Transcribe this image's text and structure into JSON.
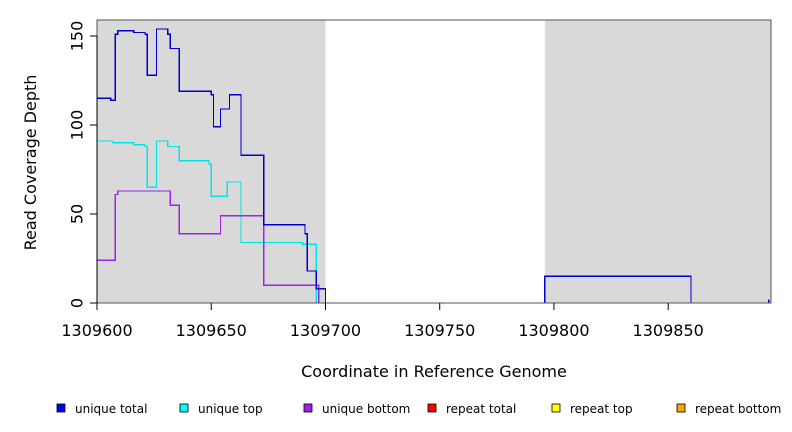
{
  "chart_data": {
    "type": "line",
    "step": true,
    "xlabel": "Coordinate in Reference Genome",
    "ylabel": "Read Coverage Depth",
    "xlim": [
      1309600,
      1309895
    ],
    "ylim": [
      0,
      159
    ],
    "x_ticks": [
      1309600,
      1309650,
      1309700,
      1309750,
      1309800,
      1309850
    ],
    "y_ticks": [
      0,
      50,
      100,
      150
    ],
    "grid": false,
    "shaded_regions": [
      [
        1309600,
        1309700
      ],
      [
        1309796,
        1309895
      ]
    ],
    "shade_color": "#d9d9d9",
    "legend_position": "bottom",
    "series": [
      {
        "name": "unique top",
        "color": "#00e5e5",
        "points": [
          [
            1309600,
            91
          ],
          [
            1309607,
            90
          ],
          [
            1309616,
            89
          ],
          [
            1309621,
            88
          ],
          [
            1309622,
            65
          ],
          [
            1309626,
            91
          ],
          [
            1309631,
            88
          ],
          [
            1309636,
            80
          ],
          [
            1309649,
            78
          ],
          [
            1309650,
            60
          ],
          [
            1309657,
            68
          ],
          [
            1309663,
            34
          ],
          [
            1309690,
            33
          ],
          [
            1309696,
            0
          ],
          [
            1309895,
            0
          ]
        ]
      },
      {
        "name": "unique bottom",
        "color": "#a020f0",
        "points": [
          [
            1309600,
            24
          ],
          [
            1309608,
            61
          ],
          [
            1309609,
            63
          ],
          [
            1309632,
            55
          ],
          [
            1309636,
            39
          ],
          [
            1309654,
            49
          ],
          [
            1309673,
            10
          ],
          [
            1309697,
            0
          ],
          [
            1309895,
            0
          ]
        ]
      },
      {
        "name": "repeat total",
        "color": "#ff0000",
        "points": [
          [
            1309600,
            0
          ],
          [
            1309895,
            0
          ]
        ]
      },
      {
        "name": "repeat top",
        "color": "#ffff00",
        "points": [
          [
            1309600,
            0
          ],
          [
            1309895,
            0
          ]
        ]
      },
      {
        "name": "repeat bottom",
        "color": "#ffa500",
        "points": [
          [
            1309600,
            0
          ],
          [
            1309700,
            0
          ]
        ]
      },
      {
        "name": "unique total",
        "color": "#0000cd",
        "points": [
          [
            1309600,
            115
          ],
          [
            1309606,
            114
          ],
          [
            1309608,
            151
          ],
          [
            1309609,
            153
          ],
          [
            1309616,
            152
          ],
          [
            1309621,
            151
          ],
          [
            1309622,
            128
          ],
          [
            1309626,
            154
          ],
          [
            1309631,
            151
          ],
          [
            1309632,
            143
          ],
          [
            1309636,
            119
          ],
          [
            1309650,
            117
          ],
          [
            1309651,
            99
          ],
          [
            1309654,
            109
          ],
          [
            1309658,
            117
          ],
          [
            1309663,
            83
          ],
          [
            1309673,
            44
          ],
          [
            1309691,
            39
          ],
          [
            1309692,
            18
          ],
          [
            1309696,
            8
          ],
          [
            1309700,
            0
          ],
          [
            1309796,
            15
          ],
          [
            1309860,
            0
          ],
          [
            1309894,
            2
          ]
        ]
      }
    ],
    "legend": [
      {
        "label": "unique total",
        "color": "#0000ff"
      },
      {
        "label": "unique top",
        "color": "#00ffff"
      },
      {
        "label": "unique bottom",
        "color": "#a020f0"
      },
      {
        "label": "repeat total",
        "color": "#ff0000"
      },
      {
        "label": "repeat top",
        "color": "#ffff00"
      },
      {
        "label": "repeat bottom",
        "color": "#ffa500"
      }
    ]
  }
}
